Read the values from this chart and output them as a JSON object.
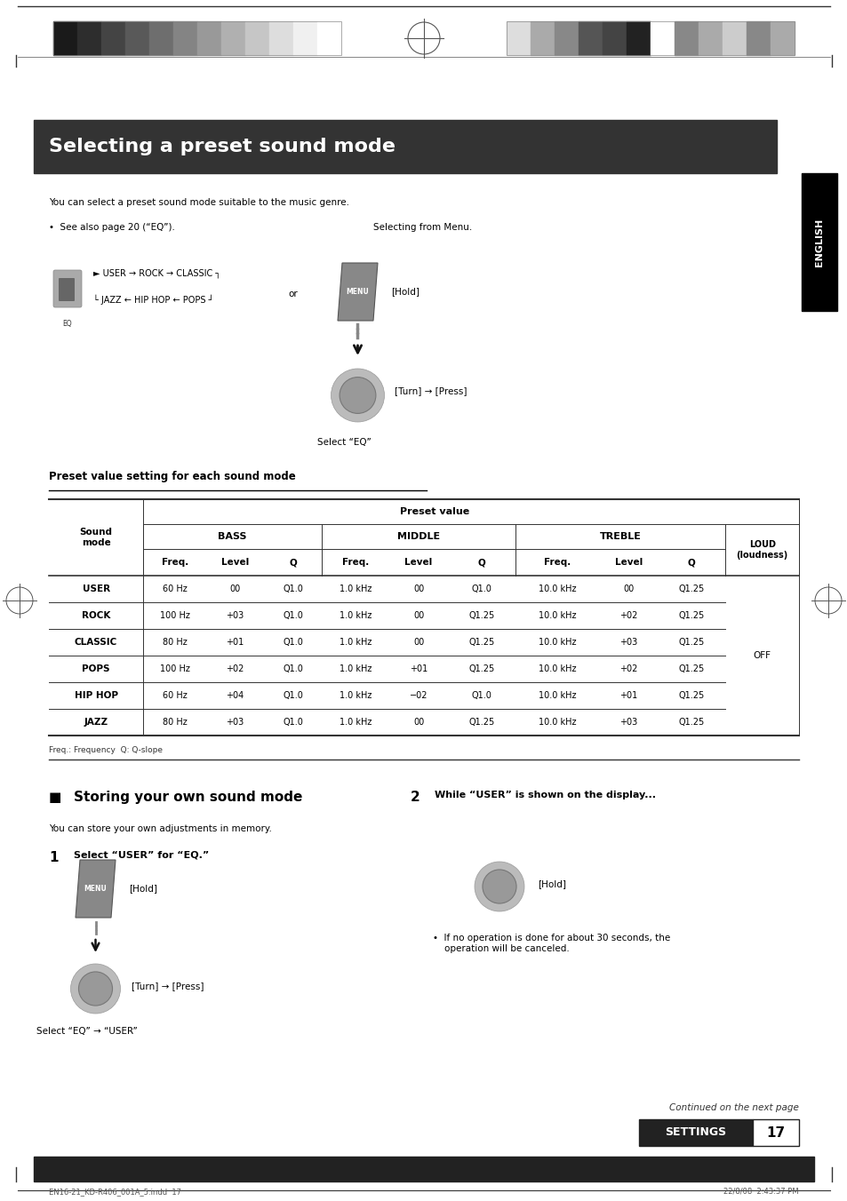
{
  "page_width": 9.54,
  "page_height": 13.52,
  "bg_color": "#ffffff",
  "header_bar_color": "#333333",
  "header_title": "Selecting a preset sound mode",
  "header_title_color": "#ffffff",
  "english_tab_color": "#000000",
  "english_tab_text": "ENGLISH",
  "body_text_1": "You can select a preset sound mode suitable to the music genre.",
  "bullet_text": "•  See also page 20 (“EQ”).",
  "selecting_text": "Selecting from Menu.",
  "hold_text": "[Hold]",
  "turn_press_text": "[Turn] → [Press]",
  "select_eq_text": "Select “EQ”",
  "or_text": "or",
  "eq_cycle_line1": "► USER → ROCK → CLASSIC ┐",
  "eq_cycle_line2": "└ JAZZ ← HIP HOP ← POPS ┘",
  "table_heading": "Preset value setting for each sound mode",
  "table_header_preset": "Preset value",
  "table_header_sound": "Sound\nmode",
  "table_header_bass": "BASS",
  "table_header_middle": "MIDDLE",
  "table_header_treble": "TREBLE",
  "table_header_loud": "LOUD\n(loudness)",
  "table_sub_headers": [
    "Freq.",
    "Level",
    "Q",
    "Freq.",
    "Level",
    "Q",
    "Freq.",
    "Level",
    "Q"
  ],
  "table_rows": [
    [
      "USER",
      "60 Hz",
      "00",
      "Q1.0",
      "1.0 kHz",
      "00",
      "Q1.0",
      "10.0 kHz",
      "00",
      "Q1.25"
    ],
    [
      "ROCK",
      "100 Hz",
      "+03",
      "Q1.0",
      "1.0 kHz",
      "00",
      "Q1.25",
      "10.0 kHz",
      "+02",
      "Q1.25"
    ],
    [
      "CLASSIC",
      "80 Hz",
      "+01",
      "Q1.0",
      "1.0 kHz",
      "00",
      "Q1.25",
      "10.0 kHz",
      "+03",
      "Q1.25"
    ],
    [
      "POPS",
      "100 Hz",
      "+02",
      "Q1.0",
      "1.0 kHz",
      "+01",
      "Q1.25",
      "10.0 kHz",
      "+02",
      "Q1.25"
    ],
    [
      "HIP HOP",
      "60 Hz",
      "+04",
      "Q1.0",
      "1.0 kHz",
      "−02",
      "Q1.0",
      "10.0 kHz",
      "+01",
      "Q1.25"
    ],
    [
      "JAZZ",
      "80 Hz",
      "+03",
      "Q1.0",
      "1.0 kHz",
      "00",
      "Q1.25",
      "10.0 kHz",
      "+03",
      "Q1.25"
    ]
  ],
  "loud_value": "OFF",
  "freq_note": "Freq.: Frequency  Q: Q-slope",
  "section2_title": "Storing your own sound mode",
  "section2_square": "■",
  "step1_label": "1",
  "step1_text": "Select “USER” for “EQ.”",
  "step1_hold": "[Hold]",
  "step1_turn_press": "[Turn] → [Press]",
  "step1_select": "Select “EQ” → “USER”",
  "step2_label": "2",
  "step2_text": "While “USER” is shown on the display...",
  "step2_hold": "[Hold]",
  "step2_bullet": "•  If no operation is done for about 30 seconds, the\n    operation will be canceled.",
  "continued_text": "Continued on the next page",
  "settings_bar_text": "SETTINGS",
  "settings_page_num": "17",
  "footer_left": "EN16-21_KD-R406_001A_5.indd  17",
  "footer_right": "22/8/08  2:43:37 PM",
  "top_bar_color": "#444444",
  "bottom_bar_color": "#333333"
}
